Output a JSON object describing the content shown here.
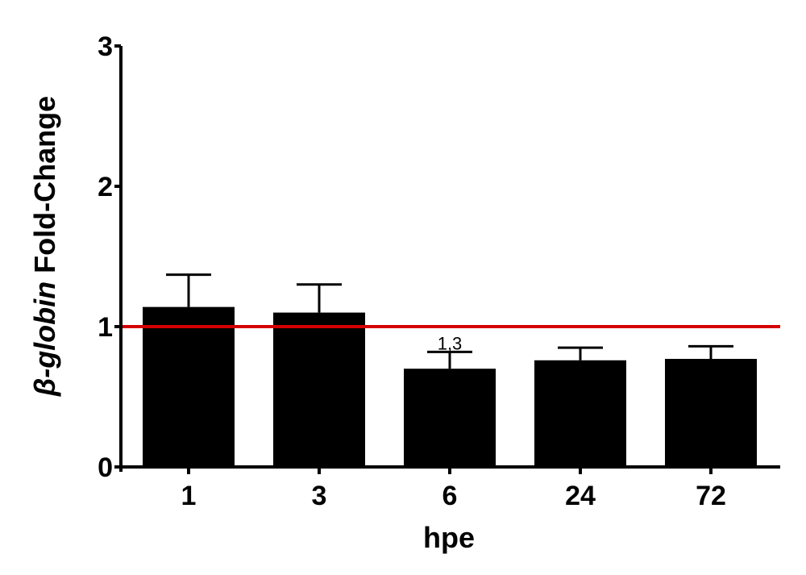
{
  "chart_data": {
    "type": "bar",
    "categories": [
      "1",
      "3",
      "6",
      "24",
      "72"
    ],
    "values": [
      1.14,
      1.1,
      0.7,
      0.76,
      0.77
    ],
    "errors": [
      0.23,
      0.2,
      0.12,
      0.09,
      0.09
    ],
    "xlabel": "hpe",
    "ylabel_italic": "β-globin",
    "ylabel_rest": " Fold-Change",
    "ylim": [
      0,
      3
    ],
    "yticks": [
      "0",
      "1",
      "2",
      "3"
    ],
    "reference_line": {
      "value": 1,
      "color": "#d40000"
    },
    "annotations": [
      {
        "category": "6",
        "text": "1,3"
      }
    ],
    "bar_color": "#000000",
    "grid": false
  }
}
